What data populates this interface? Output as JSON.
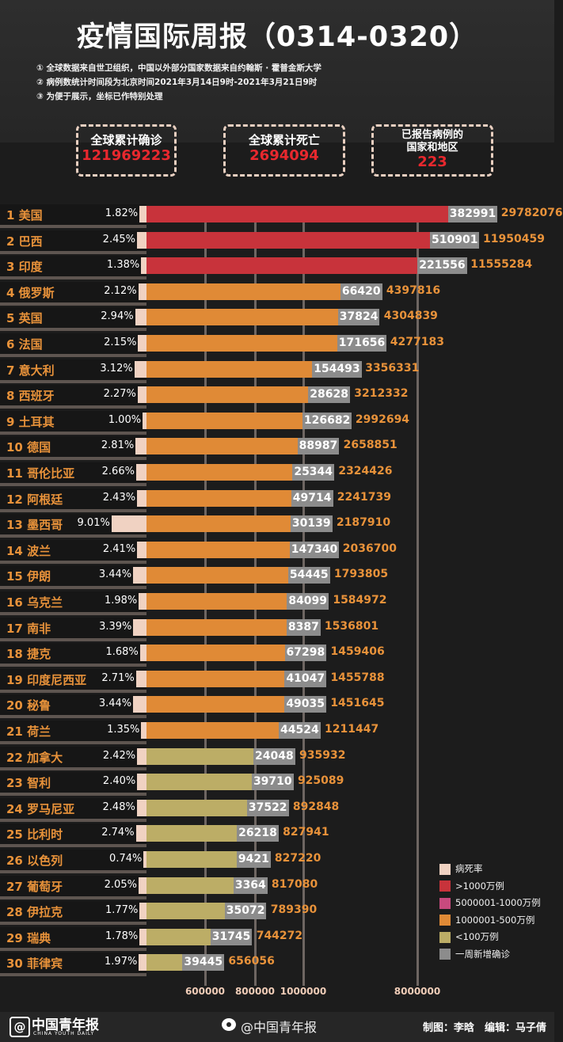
{
  "header": {
    "title": "疫情国际周报（0314-0320）",
    "notes": [
      "① 全球数据来自世卫组织，中国以外部分国家数据来自约翰斯 · 霍普金斯大学",
      "② 病例数统计时间段为北京时间2021年3月14日9时-2021年3月21日9时",
      "③ 为便于展示，坐标已作特别处理"
    ]
  },
  "stats": [
    {
      "label": "全球累计确诊",
      "value": "121969223"
    },
    {
      "label": "全球累计死亡",
      "value": "2694094"
    },
    {
      "label": "已报告病例的国家和地区",
      "label_lines": [
        "已报告病例的",
        "国家和地区"
      ],
      "value": "223"
    }
  ],
  "colors": {
    "death_rate": "#f0d2c2",
    "over_10m": "#c8333b",
    "5m_10m": "#c84a7e",
    "1m_5m": "#e08a36",
    "under_1m": "#bcad66",
    "weekly_new": "#8c8c8c"
  },
  "chart_data": {
    "type": "bar",
    "orientation": "horizontal",
    "axis_scale": "custom non-linear",
    "x_ticks": [
      "600000",
      "800000",
      "1000000",
      "8000000"
    ],
    "x_tick_values": [
      600000,
      800000,
      1000000,
      8000000
    ],
    "grid": true,
    "legend_placement": "bottom-right",
    "legend": [
      "病死率",
      ">1000万例",
      "5000001-1000万例",
      "1000001-500万例",
      "<100万例",
      "一周新增确诊"
    ],
    "rows": [
      {
        "rank": 1,
        "country": "美国",
        "death_rate": "1.82%",
        "new_cases": 382991,
        "total": 29782076
      },
      {
        "rank": 2,
        "country": "巴西",
        "death_rate": "2.45%",
        "new_cases": 510901,
        "total": 11950459
      },
      {
        "rank": 3,
        "country": "印度",
        "death_rate": "1.38%",
        "new_cases": 221556,
        "total": 11555284
      },
      {
        "rank": 4,
        "country": "俄罗斯",
        "death_rate": "2.12%",
        "new_cases": 66420,
        "total": 4397816
      },
      {
        "rank": 5,
        "country": "英国",
        "death_rate": "2.94%",
        "new_cases": 37824,
        "total": 4304839
      },
      {
        "rank": 6,
        "country": "法国",
        "death_rate": "2.15%",
        "new_cases": 171656,
        "total": 4277183
      },
      {
        "rank": 7,
        "country": "意大利",
        "death_rate": "3.12%",
        "new_cases": 154493,
        "total": 3356331
      },
      {
        "rank": 8,
        "country": "西班牙",
        "death_rate": "2.27%",
        "new_cases": 28628,
        "total": 3212332
      },
      {
        "rank": 9,
        "country": "土耳其",
        "death_rate": "1.00%",
        "new_cases": 126682,
        "total": 2992694
      },
      {
        "rank": 10,
        "country": "德国",
        "death_rate": "2.81%",
        "new_cases": 88987,
        "total": 2658851
      },
      {
        "rank": 11,
        "country": "哥伦比亚",
        "death_rate": "2.66%",
        "new_cases": 25344,
        "total": 2324426
      },
      {
        "rank": 12,
        "country": "阿根廷",
        "death_rate": "2.43%",
        "new_cases": 49714,
        "total": 2241739
      },
      {
        "rank": 13,
        "country": "墨西哥",
        "death_rate": "9.01%",
        "new_cases": 30139,
        "total": 2187910
      },
      {
        "rank": 14,
        "country": "波兰",
        "death_rate": "2.41%",
        "new_cases": 147340,
        "total": 2036700
      },
      {
        "rank": 15,
        "country": "伊朗",
        "death_rate": "3.44%",
        "new_cases": 54445,
        "total": 1793805
      },
      {
        "rank": 16,
        "country": "乌克兰",
        "death_rate": "1.98%",
        "new_cases": 84099,
        "total": 1584972
      },
      {
        "rank": 17,
        "country": "南非",
        "death_rate": "3.39%",
        "new_cases": 8387,
        "total": 1536801
      },
      {
        "rank": 18,
        "country": "捷克",
        "death_rate": "1.68%",
        "new_cases": 67298,
        "total": 1459406
      },
      {
        "rank": 19,
        "country": "印度尼西亚",
        "death_rate": "2.71%",
        "new_cases": 41047,
        "total": 1455788
      },
      {
        "rank": 20,
        "country": "秘鲁",
        "death_rate": "3.44%",
        "new_cases": 49035,
        "total": 1451645
      },
      {
        "rank": 21,
        "country": "荷兰",
        "death_rate": "1.35%",
        "new_cases": 44524,
        "total": 1211447
      },
      {
        "rank": 22,
        "country": "加拿大",
        "death_rate": "2.42%",
        "new_cases": 24048,
        "total": 935932
      },
      {
        "rank": 23,
        "country": "智利",
        "death_rate": "2.40%",
        "new_cases": 39710,
        "total": 925089
      },
      {
        "rank": 24,
        "country": "罗马尼亚",
        "death_rate": "2.48%",
        "new_cases": 37522,
        "total": 892848
      },
      {
        "rank": 25,
        "country": "比利时",
        "death_rate": "2.74%",
        "new_cases": 26218,
        "total": 827941
      },
      {
        "rank": 26,
        "country": "以色列",
        "death_rate": "0.74%",
        "new_cases": 9421,
        "total": 827220
      },
      {
        "rank": 27,
        "country": "葡萄牙",
        "death_rate": "2.05%",
        "new_cases": 3364,
        "total": 817080
      },
      {
        "rank": 28,
        "country": "伊拉克",
        "death_rate": "1.77%",
        "new_cases": 35072,
        "total": 789390
      },
      {
        "rank": 29,
        "country": "瑞典",
        "death_rate": "1.78%",
        "new_cases": 31745,
        "total": 744272
      },
      {
        "rank": 30,
        "country": "菲律宾",
        "death_rate": "1.97%",
        "new_cases": 39445,
        "total": 656056
      }
    ]
  },
  "footer": {
    "logo_text": "中国青年报",
    "logo_sub": "CHINA YOUTH DAILY",
    "weibo_icon": "weibo-icon",
    "weibo": "@中国青年报",
    "credits": "制图：李晗　编辑：马子倩"
  }
}
